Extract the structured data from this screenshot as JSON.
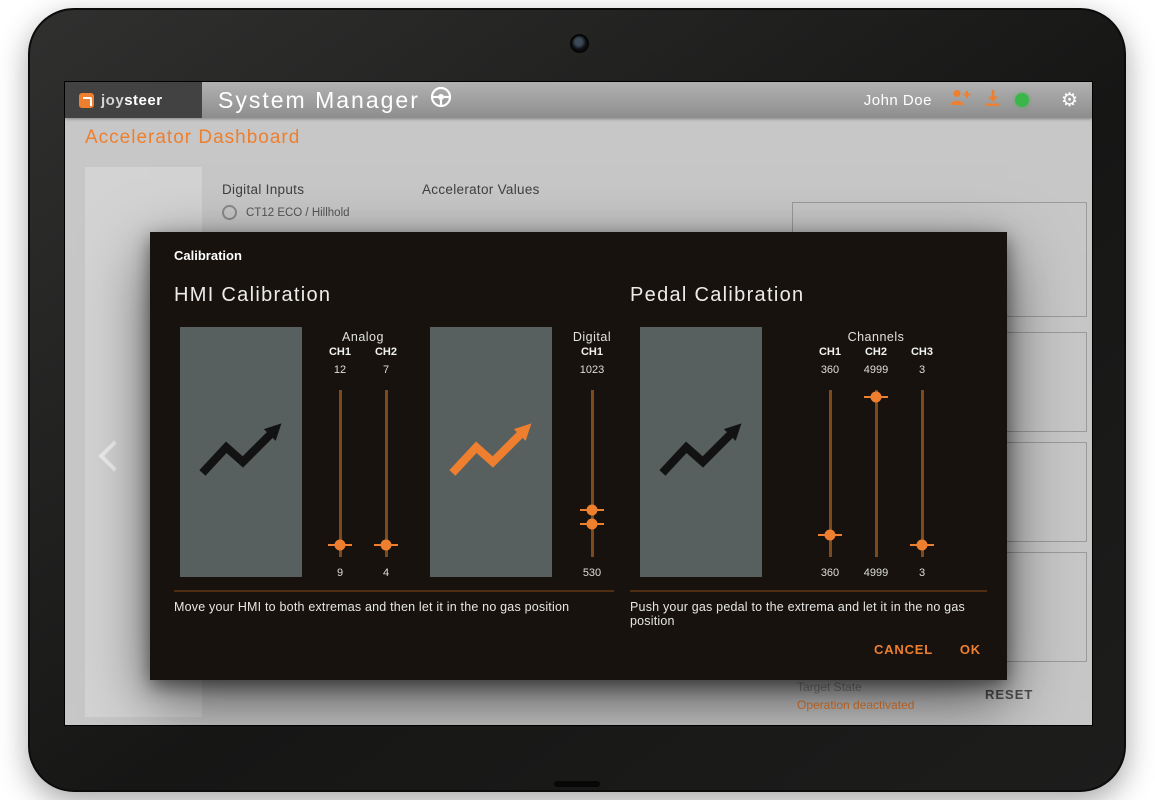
{
  "header": {
    "brand_joy": "joy",
    "brand_steer": "steer",
    "app_title": "System Manager",
    "user_name": "John Doe"
  },
  "page": {
    "title": "Accelerator Dashboard",
    "digital_inputs_label": "Digital Inputs",
    "radio_option": "CT12 ECO / Hillhold",
    "accelerator_values_label": "Accelerator Values",
    "target_state_label": "Target State",
    "target_state_value": "Operation deactivated",
    "reset_label": "RESET"
  },
  "modal": {
    "title": "Calibration",
    "hmi": {
      "heading": "HMI Calibration",
      "hint": "Move your HMI to both extremas and then let it in the no gas position",
      "analog": {
        "label": "Analog",
        "channels": [
          {
            "name": "CH1",
            "top_value": "12",
            "bottom_value": "9",
            "thumbs": [
              93
            ]
          },
          {
            "name": "CH2",
            "top_value": "7",
            "bottom_value": "4",
            "thumbs": [
              93
            ]
          }
        ]
      },
      "digital": {
        "label": "Digital",
        "channels": [
          {
            "name": "CH1",
            "top_value": "1023",
            "bottom_value": "530",
            "thumbs": [
              72,
              80
            ]
          }
        ]
      }
    },
    "pedal": {
      "heading": "Pedal Calibration",
      "hint": "Push your gas pedal to the extrema and let it in the no gas position",
      "group": {
        "label": "Channels",
        "channels": [
          {
            "name": "CH1",
            "top_value": "360",
            "bottom_value": "360",
            "thumbs": [
              87
            ]
          },
          {
            "name": "CH2",
            "top_value": "4999",
            "bottom_value": "4999",
            "thumbs": [
              4
            ]
          },
          {
            "name": "CH3",
            "top_value": "3",
            "bottom_value": "3",
            "thumbs": [
              93
            ]
          }
        ]
      }
    },
    "cancel_label": "CANCEL",
    "ok_label": "OK"
  },
  "colors": {
    "accent": "#ee7f2f",
    "modal_bg": "#17120d",
    "panel_gray": "#57605e",
    "track_brown": "#7d4a1d",
    "status_green": "#3cb54a"
  }
}
